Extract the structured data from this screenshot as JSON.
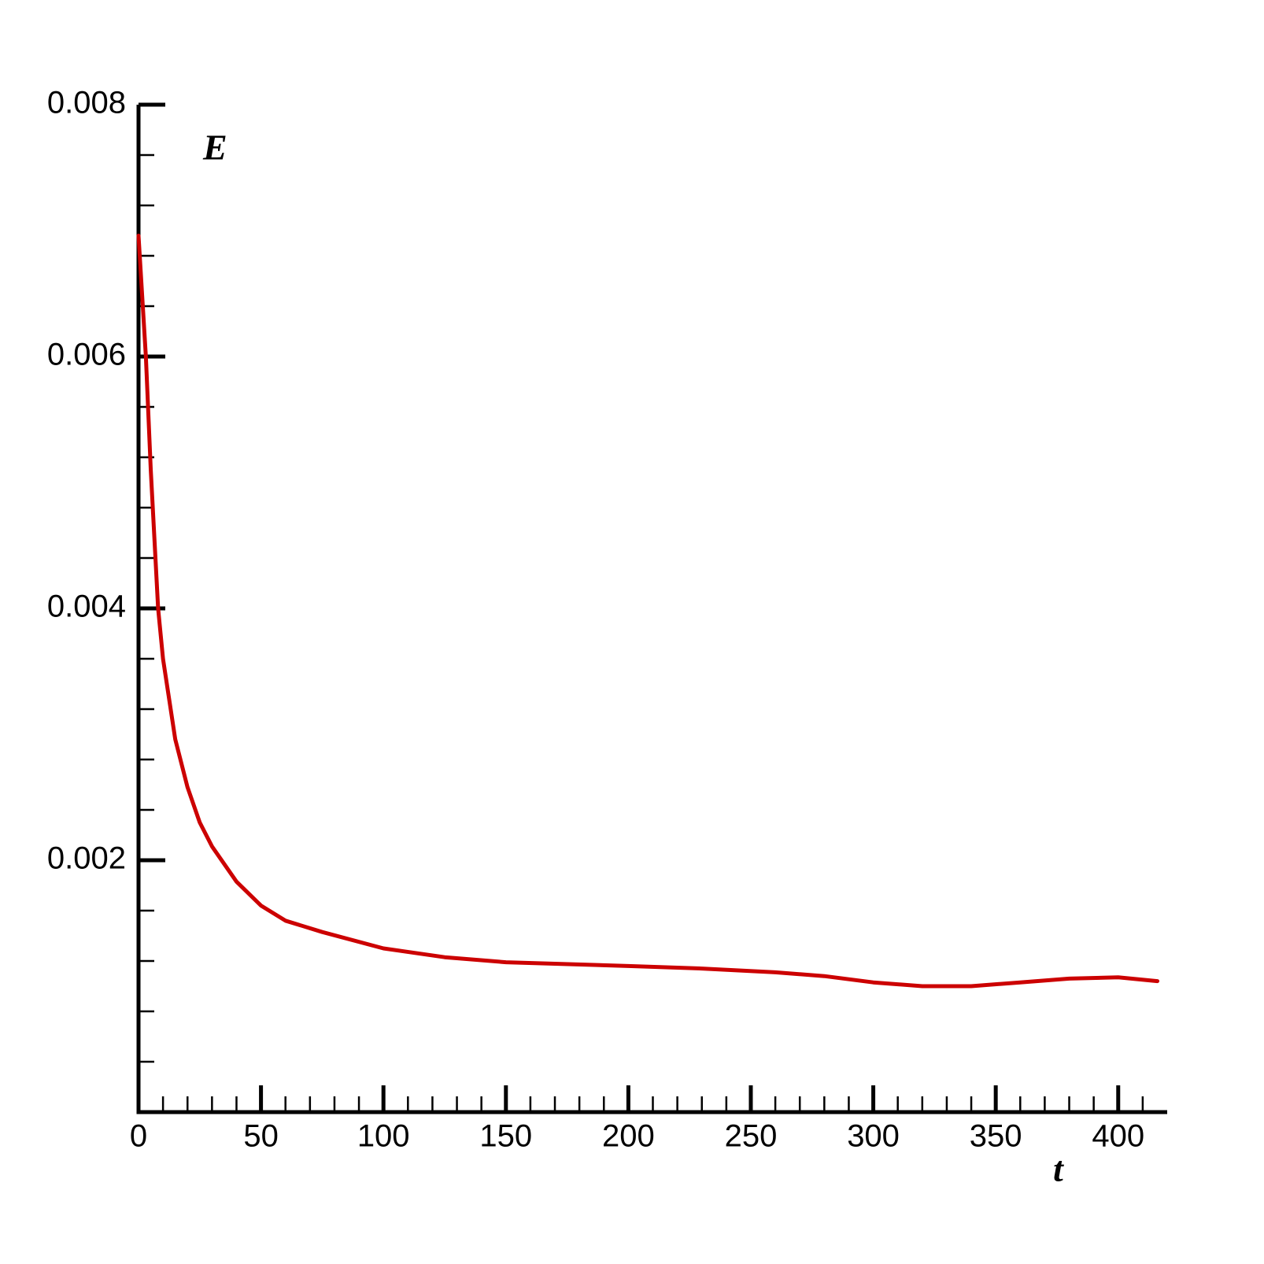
{
  "chart_data": {
    "type": "line",
    "y_label": "E",
    "x_label": "t",
    "x": [
      0,
      3,
      5,
      8,
      10,
      15,
      20,
      25,
      30,
      40,
      50,
      60,
      75,
      100,
      125,
      150,
      200,
      230,
      260,
      280,
      300,
      320,
      340,
      360,
      380,
      400,
      416
    ],
    "series": [
      {
        "color": "#cc0000",
        "values": [
          0.00696,
          0.006,
          0.0051,
          0.004,
          0.0036,
          0.00296,
          0.00258,
          0.0023,
          0.00211,
          0.00183,
          0.00164,
          0.00152,
          0.00143,
          0.0013,
          0.00123,
          0.00119,
          0.00116,
          0.00114,
          0.00111,
          0.00108,
          0.00103,
          0.001,
          0.001,
          0.00103,
          0.00106,
          0.00107,
          0.00104
        ]
      }
    ],
    "xlim": [
      0,
      420
    ],
    "ylim": [
      0,
      0.008
    ],
    "xticks": [
      0,
      50,
      100,
      150,
      200,
      250,
      300,
      350,
      400
    ],
    "yticks": [
      0.002,
      0.004,
      0.006,
      0.008
    ],
    "minor_xticks": [
      10,
      20,
      30,
      40,
      60,
      70,
      80,
      90,
      110,
      120,
      130,
      140,
      160,
      170,
      180,
      190,
      210,
      220,
      230,
      240,
      260,
      270,
      280,
      290,
      310,
      320,
      330,
      340,
      360,
      370,
      380,
      390,
      410
    ],
    "minor_yticks": [
      0.0004,
      0.0008,
      0.0012,
      0.0016,
      0.0024,
      0.0028,
      0.0032,
      0.0036,
      0.0044,
      0.0048,
      0.0052,
      0.0056,
      0.0064,
      0.0068,
      0.0072,
      0.0076
    ],
    "grid": false
  }
}
